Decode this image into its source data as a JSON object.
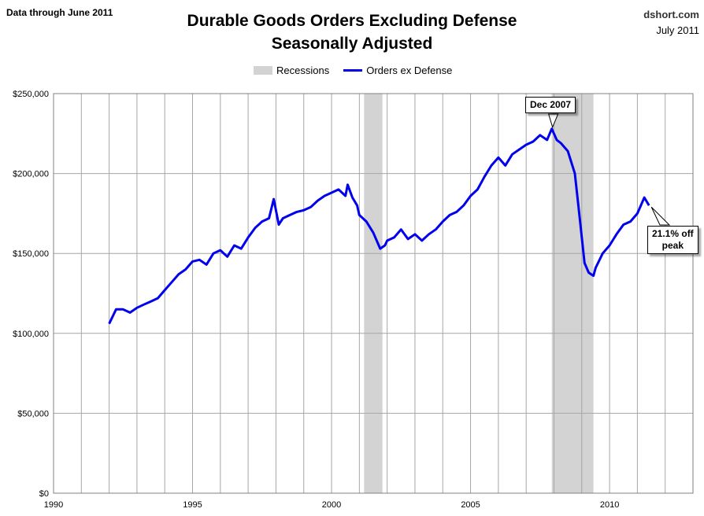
{
  "header": {
    "note": "Data through June 2011",
    "title_line1": "Durable Goods Orders Excluding Defense",
    "title_line2": "Seasonally Adjusted",
    "site": "dshort.com",
    "date": "July 2011"
  },
  "legend": {
    "recessions_label": "Recessions",
    "series_label": "Orders ex Defense"
  },
  "annotations": {
    "peak_label": "Dec 2007",
    "off_peak_line1": "21.1% off",
    "off_peak_line2": "peak"
  },
  "colors": {
    "series": "#0000ee",
    "recession": "#d3d3d3",
    "grid": "#a6a6a6"
  },
  "chart_data": {
    "type": "line",
    "title": "Durable Goods Orders Excluding Defense Seasonally Adjusted",
    "xlabel": "",
    "ylabel": "",
    "xlim": [
      1990,
      2013
    ],
    "ylim": [
      0,
      250000
    ],
    "x_ticks": [
      1990,
      1995,
      2000,
      2005,
      2010
    ],
    "y_ticks": [
      "$0",
      "$50,000",
      "$100,000",
      "$150,000",
      "$200,000",
      "$250,000"
    ],
    "y_tick_values": [
      0,
      50000,
      100000,
      150000,
      200000,
      250000
    ],
    "grid": true,
    "legend_position": "top-center",
    "recessions": [
      [
        2001.17,
        2001.83
      ],
      [
        2007.92,
        2009.42
      ]
    ],
    "series": [
      {
        "name": "Orders ex Defense",
        "x": [
          1992.0,
          1992.25,
          1992.5,
          1992.75,
          1993.0,
          1993.25,
          1993.5,
          1993.75,
          1994.0,
          1994.25,
          1994.5,
          1994.75,
          1995.0,
          1995.25,
          1995.5,
          1995.75,
          1996.0,
          1996.25,
          1996.5,
          1996.75,
          1997.0,
          1997.25,
          1997.5,
          1997.75,
          1997.92,
          1998.1,
          1998.25,
          1998.5,
          1998.75,
          1999.0,
          1999.25,
          1999.5,
          1999.75,
          2000.0,
          2000.25,
          2000.5,
          2000.58,
          2000.75,
          2000.92,
          2001.0,
          2001.25,
          2001.5,
          2001.75,
          2001.92,
          2002.0,
          2002.25,
          2002.5,
          2002.75,
          2003.0,
          2003.25,
          2003.5,
          2003.75,
          2004.0,
          2004.25,
          2004.5,
          2004.75,
          2005.0,
          2005.25,
          2005.5,
          2005.75,
          2006.0,
          2006.25,
          2006.5,
          2006.75,
          2007.0,
          2007.25,
          2007.5,
          2007.75,
          2007.92,
          2008.1,
          2008.25,
          2008.5,
          2008.75,
          2008.92,
          2009.1,
          2009.25,
          2009.42,
          2009.5,
          2009.75,
          2010.0,
          2010.25,
          2010.5,
          2010.75,
          2011.0,
          2011.25,
          2011.42
        ],
        "values": [
          106000,
          115000,
          115000,
          113000,
          116000,
          118000,
          120000,
          122000,
          127000,
          132000,
          137000,
          140000,
          145000,
          146000,
          143000,
          150000,
          152000,
          148000,
          155000,
          153000,
          160000,
          166000,
          170000,
          172000,
          184000,
          168000,
          172000,
          174000,
          176000,
          177000,
          179000,
          183000,
          186000,
          188000,
          190000,
          186000,
          193000,
          185000,
          180000,
          174000,
          170000,
          163000,
          153000,
          155000,
          158000,
          160000,
          165000,
          159000,
          162000,
          158000,
          162000,
          165000,
          170000,
          174000,
          176000,
          180000,
          186000,
          190000,
          198000,
          205000,
          210000,
          205000,
          212000,
          215000,
          218000,
          220000,
          224000,
          221000,
          228000,
          221000,
          219000,
          214000,
          200000,
          173000,
          144000,
          138000,
          136000,
          141000,
          150000,
          155000,
          162000,
          168000,
          170000,
          175000,
          185000,
          180000
        ]
      }
    ]
  }
}
